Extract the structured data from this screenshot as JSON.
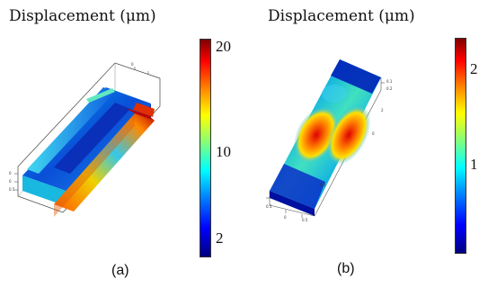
{
  "panels": [
    {
      "id": "a",
      "title": "Displacement (μm)",
      "caption": "(a)",
      "colorbar": {
        "ticks": [
          "20",
          "10",
          "2"
        ]
      }
    },
    {
      "id": "b",
      "title": "Displacement (μm)",
      "caption": "(b)",
      "colorbar": {
        "ticks": [
          "2",
          "1"
        ]
      }
    }
  ],
  "colormap": [
    "#00007f",
    "#0000ff",
    "#007fff",
    "#00ffff",
    "#7fff7f",
    "#ffff00",
    "#ff7f00",
    "#ff0000",
    "#7f0000"
  ]
}
